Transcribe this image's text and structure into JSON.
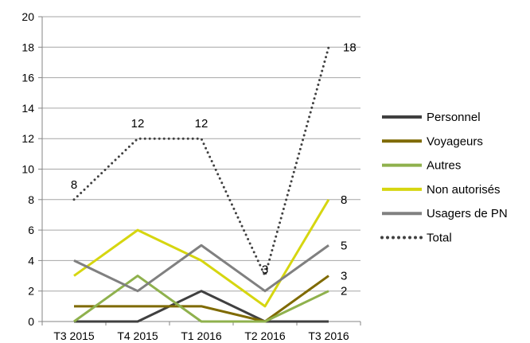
{
  "chart_data": {
    "type": "line",
    "title": "",
    "xlabel": "",
    "ylabel": "",
    "categories": [
      "T3 2015",
      "T4 2015",
      "T1 2016",
      "T2 2016",
      "T3 2016"
    ],
    "ylim": [
      0,
      20
    ],
    "y_ticks": [
      "0",
      "2",
      "4",
      "6",
      "8",
      "10",
      "12",
      "14",
      "16",
      "18",
      "20"
    ],
    "grid": "horizontal",
    "legend_position": "right",
    "series": [
      {
        "name": "Personnel",
        "values": [
          0,
          0,
          2,
          0,
          0
        ],
        "color": "#404040",
        "style": "solid",
        "labels": []
      },
      {
        "name": "Voyageurs",
        "values": [
          1,
          1,
          1,
          0,
          3
        ],
        "color": "#7f6a00",
        "style": "solid",
        "labels": [
          null,
          null,
          null,
          null,
          "3"
        ]
      },
      {
        "name": "Autres",
        "values": [
          0,
          3,
          0,
          0,
          2
        ],
        "color": "#8fb14d",
        "style": "solid",
        "labels": [
          null,
          null,
          null,
          null,
          "2"
        ]
      },
      {
        "name": "Non autorisés",
        "values": [
          3,
          6,
          4,
          1,
          8
        ],
        "color": "#d6d610",
        "style": "solid",
        "labels": [
          null,
          null,
          null,
          null,
          "8"
        ]
      },
      {
        "name": "Usagers de PN",
        "values": [
          4,
          2,
          5,
          2,
          5
        ],
        "color": "#808080",
        "style": "solid",
        "labels": [
          null,
          null,
          null,
          null,
          "5"
        ]
      },
      {
        "name": "Total",
        "values": [
          8,
          12,
          12,
          3,
          18
        ],
        "color": "#404040",
        "style": "dotted",
        "labels": [
          "8",
          "12",
          "12",
          "3",
          "18"
        ]
      }
    ]
  }
}
